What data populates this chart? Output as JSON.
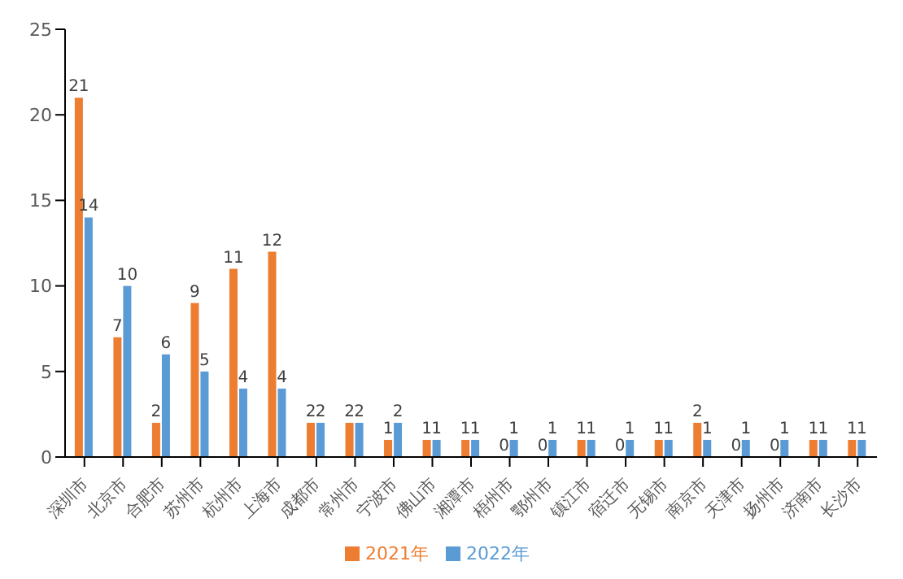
{
  "chart_data": {
    "type": "bar",
    "categories": [
      "深圳市",
      "北京市",
      "合肥市",
      "苏州市",
      "杭州市",
      "上海市",
      "成都市",
      "常州市",
      "宁波市",
      "佛山市",
      "湘潭市",
      "梧州市",
      "鄂州市",
      "镇江市",
      "宿迁市",
      "无锡市",
      "南京市",
      "天津市",
      "扬州市",
      "济南市",
      "长沙市"
    ],
    "series": [
      {
        "name": "2021年",
        "color": "#ed7d31",
        "values": [
          21,
          7,
          2,
          9,
          11,
          12,
          2,
          2,
          1,
          1,
          1,
          0,
          0,
          1,
          0,
          1,
          2,
          0,
          0,
          1,
          1
        ]
      },
      {
        "name": "2022年",
        "color": "#5b9bd5",
        "values": [
          14,
          10,
          6,
          5,
          4,
          4,
          2,
          2,
          2,
          1,
          1,
          1,
          1,
          1,
          1,
          1,
          1,
          1,
          1,
          1,
          1
        ]
      }
    ],
    "ylim": [
      0,
      25
    ],
    "yticks": [
      0,
      5,
      10,
      15,
      20,
      25
    ],
    "grid": false,
    "legend": "bottom",
    "data_labels": true
  }
}
